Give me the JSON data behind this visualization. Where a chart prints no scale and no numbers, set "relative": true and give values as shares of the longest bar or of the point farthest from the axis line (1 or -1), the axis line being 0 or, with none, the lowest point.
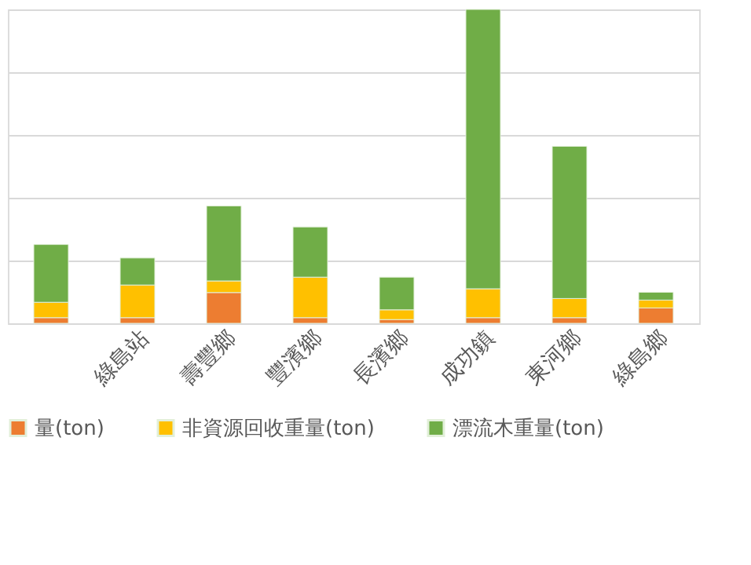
{
  "chart_data": {
    "type": "bar",
    "stacked": true,
    "relative": true,
    "grid": "y",
    "legend": "bottom",
    "categories": [
      null,
      "綠島站",
      "壽豐鄉",
      "豐濱鄉",
      "長濱鄉",
      "成功鎮",
      "東河鄉",
      "綠島鄉"
    ],
    "series": [
      {
        "name": "量(ton)",
        "color": "#ed7d31",
        "values": [
          0.018,
          0.018,
          0.098,
          0.018,
          0.012,
          0.018,
          0.018,
          0.049
        ]
      },
      {
        "name": "非資源回收重量(ton)",
        "color": "#ffc000",
        "values": [
          0.049,
          0.104,
          0.037,
          0.129,
          0.031,
          0.092,
          0.061,
          0.025
        ]
      },
      {
        "name": "漂流木重量(ton)",
        "color": "#70ad47",
        "values": [
          0.184,
          0.086,
          0.239,
          0.16,
          0.104,
          0.89,
          0.485,
          0.025
        ]
      }
    ]
  }
}
